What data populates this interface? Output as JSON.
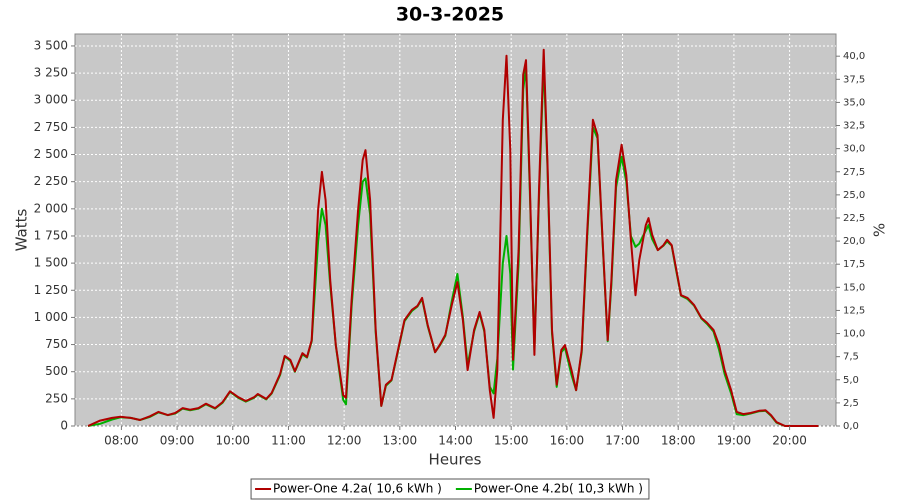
{
  "chart_data": {
    "type": "line",
    "title": "30-3-2025",
    "xlabel": "Heures",
    "ylabel": "Watts",
    "y2label": "%",
    "grid": true,
    "legend": "bottom",
    "xlim": [
      "07:10",
      "20:50"
    ],
    "xticks": [
      "08:00",
      "09:00",
      "10:00",
      "11:00",
      "12:00",
      "13:00",
      "14:00",
      "15:00",
      "16:00",
      "17:00",
      "18:00",
      "19:00",
      "20:00"
    ],
    "ylim": [
      0,
      3610
    ],
    "yticks": [
      0,
      250,
      500,
      750,
      {
        "value": 1000,
        "label": "1 000"
      },
      {
        "value": 1250,
        "label": "1 250"
      },
      {
        "value": 1500,
        "label": "1 500"
      },
      {
        "value": 1750,
        "label": "1 750"
      },
      {
        "value": 2000,
        "label": "2 000"
      },
      {
        "value": 2250,
        "label": "2 250"
      },
      {
        "value": 2500,
        "label": "2 500"
      },
      {
        "value": 2750,
        "label": "2 750"
      },
      {
        "value": 3000,
        "label": "3 000"
      },
      {
        "value": 3250,
        "label": "3 250"
      },
      {
        "value": 3500,
        "label": "3 500"
      }
    ],
    "y2lim": [
      0,
      42.4
    ],
    "y2ticks": [
      {
        "value": 0,
        "label": "0,0"
      },
      {
        "value": 2.5,
        "label": "2,5"
      },
      {
        "value": 5,
        "label": "5,0"
      },
      {
        "value": 7.5,
        "label": "7,5"
      },
      {
        "value": 10,
        "label": "10,0"
      },
      {
        "value": 12.5,
        "label": "12,5"
      },
      {
        "value": 15,
        "label": "15,0"
      },
      {
        "value": 17.5,
        "label": "17,5"
      },
      {
        "value": 20,
        "label": "20,0"
      },
      {
        "value": 22.5,
        "label": "22,5"
      },
      {
        "value": 25,
        "label": "25,0"
      },
      {
        "value": 27.5,
        "label": "27,5"
      },
      {
        "value": 30,
        "label": "30,0"
      },
      {
        "value": 32.5,
        "label": "32,5"
      },
      {
        "value": 35,
        "label": "35,0"
      },
      {
        "value": 37.5,
        "label": "37,5"
      },
      {
        "value": 40,
        "label": "40,0"
      }
    ],
    "x": [
      "07:24",
      "07:37",
      "07:50",
      "07:59",
      "08:10",
      "08:20",
      "08:31",
      "08:40",
      "08:50",
      "08:58",
      "09:06",
      "09:14",
      "09:23",
      "09:31",
      "09:41",
      "09:49",
      "09:57",
      "10:06",
      "10:14",
      "10:23",
      "10:27",
      "10:36",
      "10:42",
      "10:51",
      "10:56",
      "11:02",
      "11:07",
      "11:15",
      "11:20",
      "11:25",
      "11:32",
      "11:36",
      "11:40",
      "11:45",
      "11:51",
      "11:59",
      "12:02",
      "12:08",
      "12:15",
      "12:20",
      "12:23",
      "12:28",
      "12:34",
      "12:40",
      "12:45",
      "12:51",
      "12:58",
      "13:05",
      "13:13",
      "13:19",
      "13:24",
      "13:30",
      "13:38",
      "13:43",
      "13:49",
      "13:56",
      "14:02",
      "14:08",
      "14:13",
      "14:20",
      "14:26",
      "14:31",
      "14:37",
      "14:41",
      "14:45",
      "14:51",
      "14:55",
      "14:59",
      "15:02",
      "15:08",
      "15:13",
      "15:16",
      "15:20",
      "15:25",
      "15:30",
      "15:35",
      "15:39",
      "15:44",
      "15:49",
      "15:54",
      "15:58",
      "16:05",
      "16:10",
      "16:16",
      "16:22",
      "16:28",
      "16:33",
      "16:39",
      "16:44",
      "16:48",
      "16:53",
      "16:59",
      "17:04",
      "17:09",
      "17:14",
      "17:18",
      "17:25",
      "17:28",
      "17:32",
      "17:38",
      "17:44",
      "17:48",
      "17:53",
      "17:57",
      "18:03",
      "18:10",
      "18:17",
      "18:25",
      "18:31",
      "18:38",
      "18:44",
      "18:50",
      "18:57",
      "19:03",
      "19:10",
      "19:18",
      "19:27",
      "19:34",
      "19:40",
      "19:46",
      "19:55",
      "20:31"
    ],
    "series": [
      {
        "name": "Power-One 4.2a( 10,6 kWh )",
        "color": "#b00000",
        "values": [
          0,
          50,
          75,
          85,
          75,
          55,
          90,
          130,
          100,
          120,
          165,
          150,
          165,
          205,
          165,
          220,
          320,
          265,
          230,
          265,
          295,
          250,
          305,
          480,
          645,
          610,
          505,
          670,
          635,
          790,
          1990,
          2340,
          2080,
          1345,
          745,
          285,
          260,
          1160,
          1990,
          2450,
          2540,
          2080,
          885,
          185,
          380,
          425,
          700,
          975,
          1070,
          1105,
          1180,
          930,
          680,
          745,
          840,
          1115,
          1325,
          975,
          515,
          885,
          1050,
          885,
          330,
          75,
          515,
          2820,
          3410,
          2540,
          610,
          1620,
          3235,
          3370,
          2265,
          655,
          2175,
          3465,
          2450,
          885,
          380,
          700,
          745,
          515,
          330,
          700,
          1805,
          2820,
          2680,
          1620,
          790,
          1345,
          2265,
          2590,
          2310,
          1715,
          1205,
          1530,
          1850,
          1915,
          1760,
          1620,
          1665,
          1715,
          1665,
          1485,
          1205,
          1180,
          1115,
          995,
          950,
          885,
          745,
          515,
          330,
          130,
          110,
          120,
          140,
          145,
          100,
          35,
          0,
          0
        ]
      },
      {
        "name": "Power-One 4.2b( 10,3 kWh )",
        "color": "#00b000",
        "values": [
          0,
          20,
          60,
          80,
          75,
          55,
          85,
          125,
          100,
          115,
          160,
          145,
          160,
          200,
          160,
          215,
          315,
          260,
          225,
          260,
          290,
          245,
          300,
          470,
          640,
          600,
          500,
          660,
          630,
          780,
          1700,
          2000,
          1850,
          1300,
          745,
          240,
          200,
          1100,
          1850,
          2250,
          2280,
          1950,
          860,
          185,
          370,
          420,
          690,
          965,
          1060,
          1100,
          1170,
          920,
          680,
          740,
          830,
          1150,
          1400,
          1000,
          560,
          870,
          1040,
          870,
          360,
          300,
          620,
          1500,
          1750,
          1400,
          520,
          1500,
          3100,
          3300,
          2200,
          700,
          2100,
          3350,
          2400,
          850,
          360,
          680,
          720,
          470,
          330,
          680,
          1750,
          2750,
          2650,
          1600,
          780,
          1300,
          2200,
          2480,
          2250,
          1750,
          1650,
          1680,
          1800,
          1850,
          1720,
          1620,
          1660,
          1700,
          1660,
          1470,
          1200,
          1170,
          1110,
          990,
          940,
          870,
          700,
          480,
          300,
          110,
          100,
          115,
          135,
          140,
          95,
          30,
          0,
          0
        ]
      }
    ]
  }
}
